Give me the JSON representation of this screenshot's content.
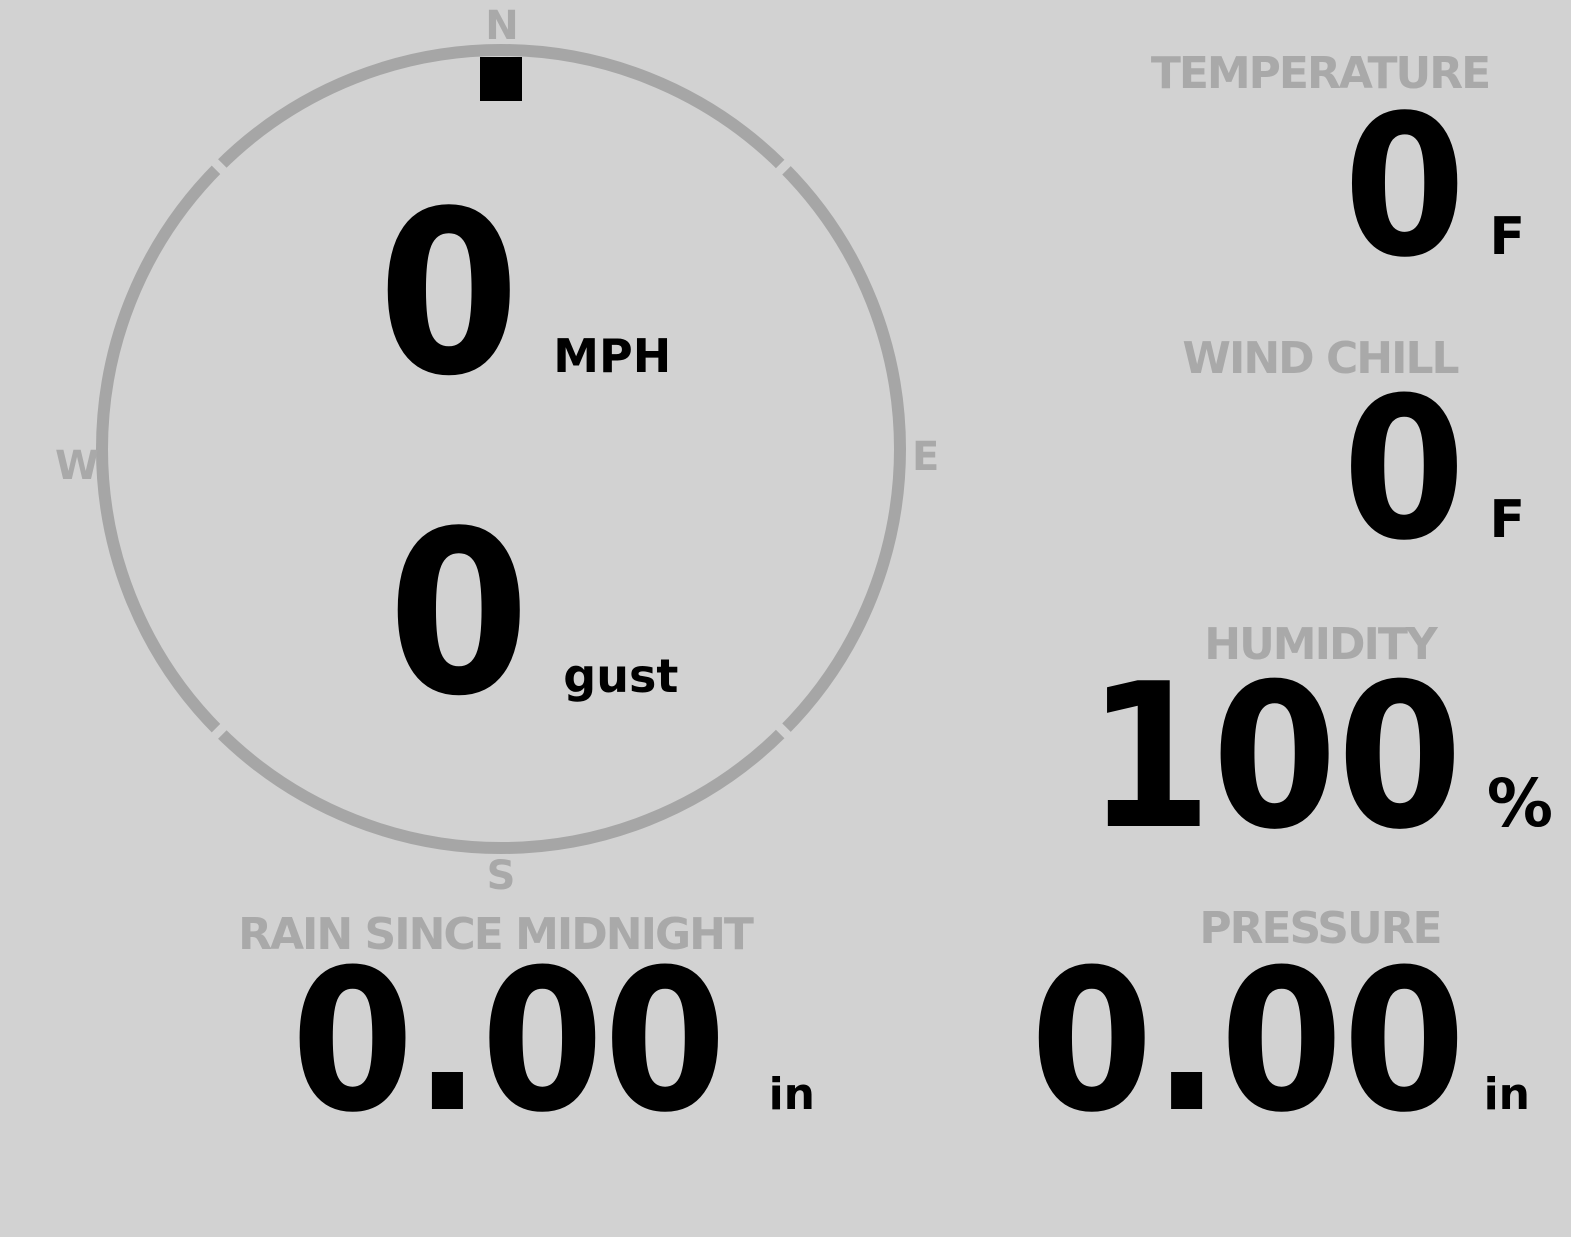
{
  "theme": {
    "background": "#d2d2d2",
    "muted_gray": "#a9a9a9",
    "ring_gray": "#a6a6a6",
    "value_color": "#000000"
  },
  "wind": {
    "compass": {
      "north": "N",
      "east": "E",
      "south": "S",
      "west": "W"
    },
    "direction": "N",
    "speed": {
      "value": "0",
      "unit": "MPH"
    },
    "gust": {
      "value": "0",
      "unit": "gust"
    }
  },
  "temperature": {
    "label": "TEMPERATURE",
    "value": "0",
    "unit": "F"
  },
  "wind_chill": {
    "label": "WIND CHILL",
    "value": "0",
    "unit": "F"
  },
  "humidity": {
    "label": "HUMIDITY",
    "value": "100",
    "unit": "%"
  },
  "rain_since_midnight": {
    "label": "RAIN SINCE MIDNIGHT",
    "value": "0.00",
    "unit": "in"
  },
  "pressure": {
    "label": "PRESSURE",
    "value": "0.00",
    "unit": "in"
  }
}
